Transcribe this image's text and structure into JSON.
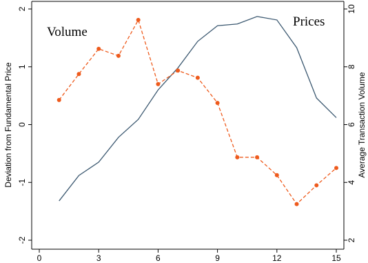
{
  "chart_data": {
    "type": "line",
    "x": [
      1,
      2,
      3,
      4,
      5,
      6,
      7,
      8,
      9,
      10,
      11,
      12,
      13,
      14,
      15
    ],
    "xlim": [
      0,
      15
    ],
    "xticks": [
      "0",
      "3",
      "6",
      "9",
      "12",
      "15"
    ],
    "ylabel_left": "Deviation from Fundamental Price",
    "ylabel_right": "Average Transaction Volume",
    "ylim_left": [
      -2,
      2
    ],
    "ylim_right": [
      2,
      10
    ],
    "yticks_left": [
      "-2",
      "-1",
      "0",
      "1",
      "2"
    ],
    "yticks_right": [
      "2",
      "4",
      "6",
      "8",
      "10"
    ],
    "grid": false,
    "series": [
      {
        "name": "Prices",
        "axis": "left",
        "color": "#3b5870",
        "style": "solid",
        "values": [
          -1.32,
          -0.88,
          -0.65,
          -0.22,
          0.09,
          0.6,
          0.98,
          1.44,
          1.71,
          1.74,
          1.87,
          1.81,
          1.33,
          0.46,
          0.12
        ]
      },
      {
        "name": "Volume",
        "axis": "right",
        "color": "#ee5a1c",
        "style": "dashed",
        "values": [
          6.85,
          7.75,
          8.62,
          8.38,
          9.62,
          7.4,
          7.87,
          7.62,
          6.75,
          4.87,
          4.87,
          4.25,
          3.25,
          3.9,
          4.5
        ]
      }
    ],
    "annotations": [
      "Volume",
      "Prices"
    ]
  }
}
